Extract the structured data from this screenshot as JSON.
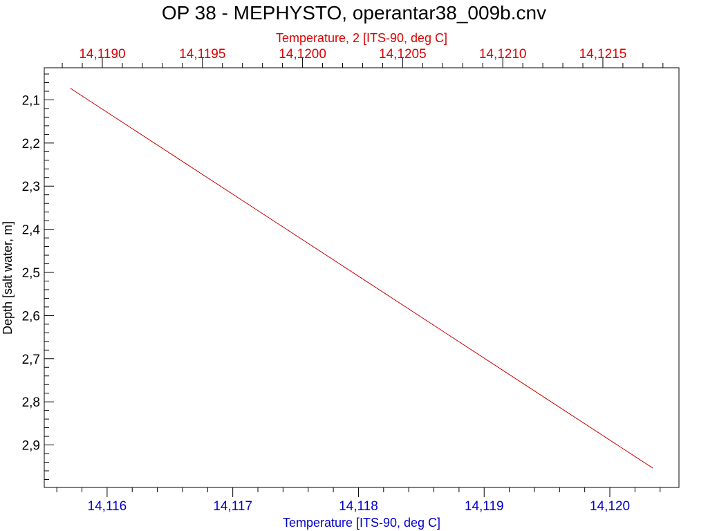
{
  "chart_data": {
    "type": "line",
    "title": "OP 38 - MEPHYSTO, operantar38_009b.cnv",
    "xlabel": "Temperature [ITS-90, deg C]",
    "x2label": "Temperature, 2 [ITS-90, deg C]",
    "ylabel": "Depth [salt water, m]",
    "xlim": [
      14.1155,
      14.12055
    ],
    "x2lim": [
      14.11871,
      14.12188
    ],
    "ylim": [
      2.0255,
      2.9985
    ],
    "y_inverted": true,
    "x_ticks": [
      "14,116",
      "14,117",
      "14,118",
      "14,119",
      "14,120"
    ],
    "x2_ticks": [
      "14,1190",
      "14,1195",
      "14,1200",
      "14,1205",
      "14,1210",
      "14,1215"
    ],
    "y_ticks": [
      "2,1",
      "2,2",
      "2,3",
      "2,4",
      "2,5",
      "2,6",
      "2,7",
      "2,8",
      "2,9"
    ],
    "series": [
      {
        "axis": "top",
        "color": "#cc0000",
        "x": [
          14.11884,
          14.12175
        ],
        "y": [
          2.073,
          2.954
        ]
      }
    ],
    "grid": false,
    "colors": {
      "bottom_axis": "#0000cc",
      "top_axis": "#dd0000",
      "left_axis": "#000000"
    }
  }
}
